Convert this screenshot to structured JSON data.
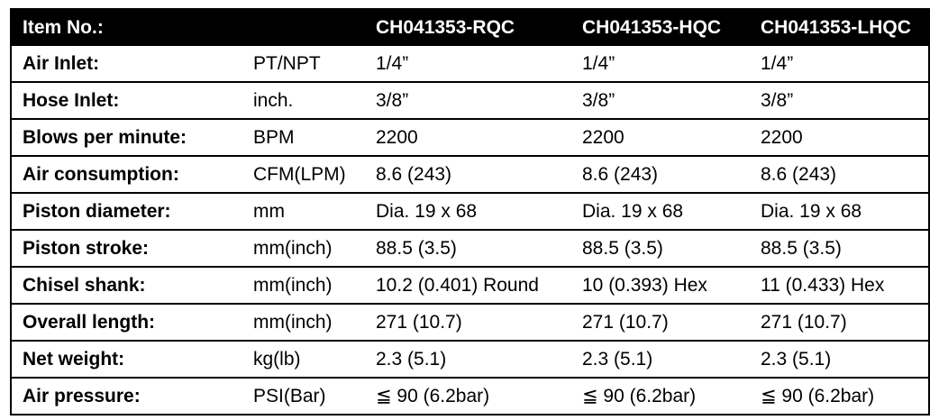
{
  "table": {
    "header": {
      "label": "Item No.:",
      "unit": "",
      "models": [
        "CH041353-RQC",
        "CH041353-HQC",
        "CH041353-LHQC"
      ]
    },
    "rows": [
      {
        "label": "Air Inlet:",
        "unit": "PT/NPT",
        "values": [
          "1/4”",
          "1/4”",
          "1/4”"
        ]
      },
      {
        "label": "Hose Inlet:",
        "unit": "inch.",
        "values": [
          "3/8”",
          "3/8”",
          "3/8”"
        ]
      },
      {
        "label": "Blows per minute:",
        "unit": "BPM",
        "values": [
          "2200",
          "2200",
          "2200"
        ]
      },
      {
        "label": "Air consumption:",
        "unit": "CFM(LPM)",
        "values": [
          "8.6 (243)",
          "8.6 (243)",
          "8.6 (243)"
        ]
      },
      {
        "label": "Piston diameter:",
        "unit": "mm",
        "values": [
          "Dia. 19 x 68",
          "Dia. 19 x 68",
          "Dia. 19 x 68"
        ]
      },
      {
        "label": "Piston stroke:",
        "unit": "mm(inch)",
        "values": [
          "88.5 (3.5)",
          "88.5 (3.5)",
          "88.5 (3.5)"
        ]
      },
      {
        "label": "Chisel shank:",
        "unit": "mm(inch)",
        "values": [
          "10.2 (0.401) Round",
          "10 (0.393) Hex",
          "11 (0.433) Hex"
        ]
      },
      {
        "label": "Overall length:",
        "unit": "mm(inch)",
        "values": [
          "271 (10.7)",
          "271 (10.7)",
          "271 (10.7)"
        ]
      },
      {
        "label": "Net weight:",
        "unit": "kg(lb)",
        "values": [
          "2.3 (5.1)",
          "2.3 (5.1)",
          "2.3 (5.1)"
        ]
      },
      {
        "label": "Air pressure:",
        "unit": "PSI(Bar)",
        "values": [
          "≦ 90 (6.2bar)",
          "≦ 90 (6.2bar)",
          "≦ 90 (6.2bar)"
        ]
      }
    ]
  },
  "colors": {
    "header_bg": "#000000",
    "header_text": "#ffffff",
    "border": "#000000"
  }
}
